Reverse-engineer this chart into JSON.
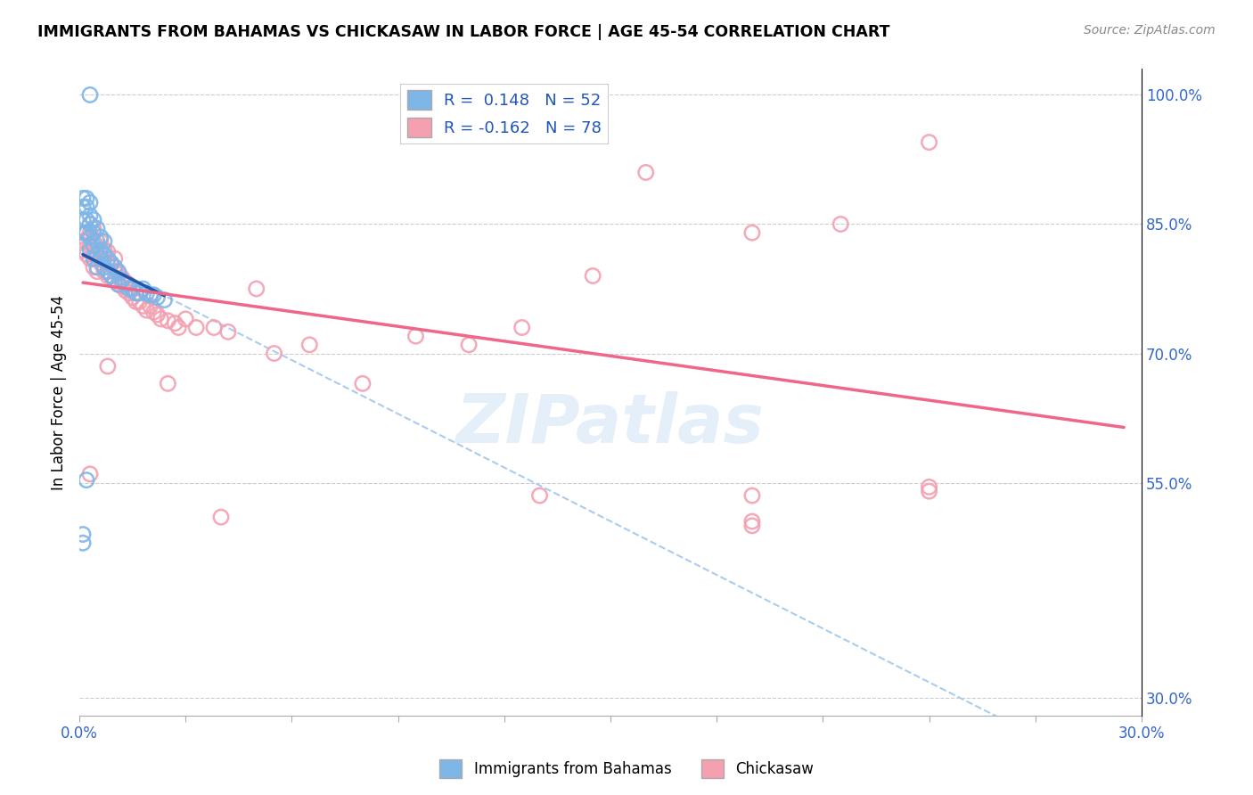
{
  "title": "IMMIGRANTS FROM BAHAMAS VS CHICKASAW IN LABOR FORCE | AGE 45-54 CORRELATION CHART",
  "source": "Source: ZipAtlas.com",
  "ylabel": "In Labor Force | Age 45-54",
  "xlim": [
    0.0,
    0.3
  ],
  "ylim": [
    0.28,
    1.03
  ],
  "yticks": [
    0.3,
    0.55,
    0.7,
    0.85,
    1.0
  ],
  "ytick_labels": [
    "30.0%",
    "55.0%",
    "70.0%",
    "85.0%",
    "100.0%"
  ],
  "xticks": [
    0.0,
    0.03,
    0.06,
    0.09,
    0.12,
    0.15,
    0.18,
    0.21,
    0.24,
    0.27,
    0.3
  ],
  "xtick_labels": [
    "0.0%",
    "",
    "",
    "",
    "",
    "",
    "",
    "",
    "",
    "",
    "30.0%"
  ],
  "legend_R1": "0.148",
  "legend_N1": "52",
  "legend_R2": "-0.162",
  "legend_N2": "78",
  "blue_color": "#7EB6E8",
  "pink_color": "#F4A0B0",
  "trend_blue": "#2255AA",
  "trend_pink": "#EE6688",
  "trend_dash_blue": "#AACCEE",
  "watermark": "ZIPatlas",
  "blue_scatter_x": [
    0.001,
    0.001,
    0.001,
    0.001,
    0.002,
    0.002,
    0.002,
    0.002,
    0.002,
    0.003,
    0.003,
    0.003,
    0.003,
    0.003,
    0.004,
    0.004,
    0.004,
    0.004,
    0.005,
    0.005,
    0.005,
    0.005,
    0.006,
    0.006,
    0.006,
    0.007,
    0.007,
    0.007,
    0.008,
    0.008,
    0.009,
    0.009,
    0.01,
    0.01,
    0.011,
    0.011,
    0.012,
    0.013,
    0.014,
    0.015,
    0.016,
    0.017,
    0.018,
    0.019,
    0.02,
    0.021,
    0.022,
    0.024,
    0.001,
    0.001,
    0.002,
    0.003
  ],
  "blue_scatter_y": [
    0.84,
    0.855,
    0.87,
    0.88,
    0.84,
    0.855,
    0.87,
    0.88,
    0.84,
    0.82,
    0.835,
    0.85,
    0.86,
    0.875,
    0.81,
    0.825,
    0.84,
    0.855,
    0.8,
    0.815,
    0.83,
    0.845,
    0.81,
    0.82,
    0.835,
    0.8,
    0.815,
    0.83,
    0.795,
    0.81,
    0.79,
    0.805,
    0.785,
    0.8,
    0.78,
    0.795,
    0.785,
    0.78,
    0.775,
    0.775,
    0.77,
    0.77,
    0.775,
    0.77,
    0.768,
    0.768,
    0.765,
    0.762,
    0.48,
    0.49,
    0.553,
    1.0
  ],
  "pink_scatter_x": [
    0.001,
    0.001,
    0.002,
    0.002,
    0.002,
    0.003,
    0.003,
    0.003,
    0.003,
    0.004,
    0.004,
    0.004,
    0.004,
    0.005,
    0.005,
    0.005,
    0.006,
    0.006,
    0.006,
    0.007,
    0.007,
    0.007,
    0.008,
    0.008,
    0.008,
    0.009,
    0.009,
    0.01,
    0.01,
    0.01,
    0.011,
    0.011,
    0.012,
    0.012,
    0.013,
    0.013,
    0.014,
    0.014,
    0.015,
    0.015,
    0.016,
    0.016,
    0.017,
    0.018,
    0.019,
    0.02,
    0.021,
    0.022,
    0.023,
    0.025,
    0.027,
    0.028,
    0.03,
    0.033,
    0.038,
    0.042,
    0.05,
    0.055,
    0.065,
    0.08,
    0.095,
    0.11,
    0.125,
    0.145,
    0.16,
    0.19,
    0.215,
    0.24,
    0.003,
    0.008,
    0.025,
    0.19,
    0.04,
    0.13,
    0.19,
    0.24,
    0.19,
    0.24
  ],
  "pink_scatter_y": [
    0.83,
    0.82,
    0.815,
    0.83,
    0.84,
    0.81,
    0.825,
    0.84,
    0.85,
    0.8,
    0.815,
    0.83,
    0.845,
    0.795,
    0.81,
    0.825,
    0.805,
    0.815,
    0.83,
    0.795,
    0.81,
    0.82,
    0.79,
    0.805,
    0.818,
    0.79,
    0.803,
    0.785,
    0.795,
    0.81,
    0.78,
    0.792,
    0.778,
    0.788,
    0.773,
    0.783,
    0.77,
    0.78,
    0.765,
    0.775,
    0.76,
    0.77,
    0.76,
    0.755,
    0.75,
    0.755,
    0.748,
    0.745,
    0.74,
    0.738,
    0.735,
    0.73,
    0.74,
    0.73,
    0.73,
    0.725,
    0.775,
    0.7,
    0.71,
    0.665,
    0.72,
    0.71,
    0.73,
    0.79,
    0.91,
    0.84,
    0.85,
    0.945,
    0.56,
    0.685,
    0.665,
    0.505,
    0.51,
    0.535,
    0.5,
    0.545,
    0.535,
    0.54
  ]
}
